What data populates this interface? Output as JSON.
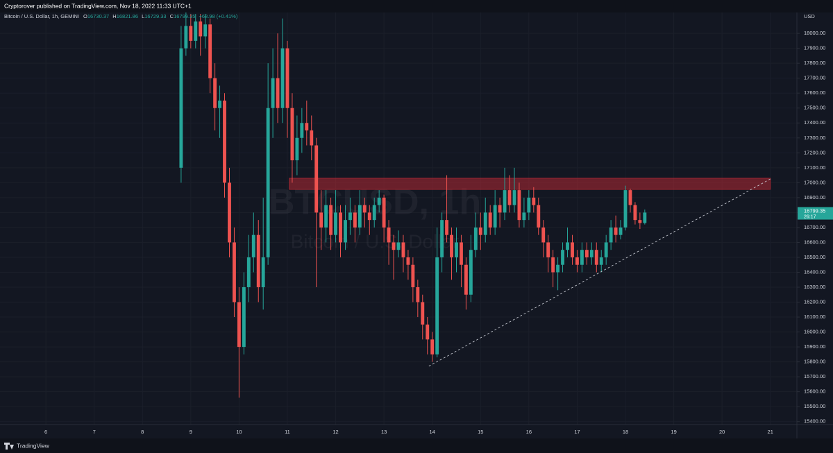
{
  "chart_data": {
    "type": "candlestick",
    "header": "Cryptorover published on TradingView.com, Nov 18, 2022 11:33 UTC+1",
    "symbol": "Bitcoin / U.S. Dollar, 1h, GEMINI",
    "legend": {
      "open_label": "O",
      "open": 16730.37,
      "high_label": "H",
      "high": 16821.86,
      "low_label": "L",
      "low": 16729.33,
      "close_label": "C",
      "close": 16799.35,
      "change": "+68.98 (+0.41%)"
    },
    "watermark": {
      "symbol": "BTCUSD, 1h",
      "name": "Bitcoin / U.S. Dollar"
    },
    "currency": "USD",
    "footer": "TradingView",
    "last_price": 16799.35,
    "countdown": "26:17",
    "up_color": "#26a69a",
    "down_color": "#ef5350",
    "xlim": [
      5.05,
      21.55
    ],
    "xticks": [
      6,
      7,
      8,
      9,
      10,
      11,
      12,
      13,
      14,
      15,
      16,
      17,
      18,
      19,
      20,
      21
    ],
    "ylim": [
      15380,
      18140
    ],
    "yticks": [
      {
        "value": 15400,
        "label": "15400.00"
      },
      {
        "value": 15500,
        "label": "15500.00"
      },
      {
        "value": 15600,
        "label": "15600.00"
      },
      {
        "value": 15700,
        "label": "15700.00"
      },
      {
        "value": 15800,
        "label": "15800.00"
      },
      {
        "value": 15900,
        "label": "15900.00"
      },
      {
        "value": 16000,
        "label": "16000.00"
      },
      {
        "value": 16100,
        "label": "16100.00"
      },
      {
        "value": 16200,
        "label": "16200.00"
      },
      {
        "value": 16300,
        "label": "16300.00"
      },
      {
        "value": 16400,
        "label": "16400.00"
      },
      {
        "value": 16500,
        "label": "16500.00"
      },
      {
        "value": 16600,
        "label": "16600.00"
      },
      {
        "value": 16700,
        "label": "16700.00"
      },
      {
        "value": 16800,
        "label": "16800.00"
      },
      {
        "value": 16900,
        "label": "16900.00"
      },
      {
        "value": 17000,
        "label": "17000.00"
      },
      {
        "value": 17100,
        "label": "17100.00"
      },
      {
        "value": 17200,
        "label": "17200.00"
      },
      {
        "value": 17300,
        "label": "17300.00"
      },
      {
        "value": 17400,
        "label": "17400.00"
      },
      {
        "value": 17500,
        "label": "17500.00"
      },
      {
        "value": 17600,
        "label": "17600.00"
      },
      {
        "value": 17700,
        "label": "17700.00"
      },
      {
        "value": 17800,
        "label": "17800.00"
      },
      {
        "value": 17900,
        "label": "17900.00"
      },
      {
        "value": 18000,
        "label": "18000.00"
      }
    ],
    "grid": true,
    "zone": {
      "x_from": 11.04,
      "x_to": 21,
      "y_from": 16955,
      "y_to": 17030,
      "color": "#b22833"
    },
    "trendline": {
      "x": [
        13.93,
        21
      ],
      "y": [
        15771,
        17025
      ]
    },
    "candles": [
      [
        8.8,
        17100,
        18050,
        17000,
        17900
      ],
      [
        8.9,
        17900,
        18140,
        17850,
        18050
      ],
      [
        9.0,
        18050,
        18130,
        17900,
        17950
      ],
      [
        9.1,
        17950,
        18130,
        17900,
        18080
      ],
      [
        9.2,
        18080,
        18130,
        17850,
        17980
      ],
      [
        9.3,
        17980,
        18130,
        17900,
        18060
      ],
      [
        9.4,
        18060,
        18100,
        17600,
        17700
      ],
      [
        9.5,
        17700,
        17800,
        17350,
        17500
      ],
      [
        9.6,
        17500,
        17650,
        17300,
        17550
      ],
      [
        9.7,
        17550,
        17600,
        16900,
        17000
      ],
      [
        9.8,
        17000,
        17100,
        16500,
        16600
      ],
      [
        9.9,
        16600,
        16700,
        16100,
        16200
      ],
      [
        10.0,
        16200,
        16300,
        15560,
        15900
      ],
      [
        10.1,
        15900,
        16400,
        15850,
        16300
      ],
      [
        10.2,
        16300,
        16650,
        16200,
        16500
      ],
      [
        10.3,
        16500,
        16800,
        16400,
        16650
      ],
      [
        10.4,
        16650,
        16750,
        16200,
        16300
      ],
      [
        10.5,
        16300,
        16900,
        16150,
        16500
      ],
      [
        10.6,
        16500,
        17800,
        16450,
        17500
      ],
      [
        10.7,
        17500,
        17900,
        17300,
        17700
      ],
      [
        10.8,
        17700,
        18000,
        17400,
        17500
      ],
      [
        10.9,
        17500,
        18100,
        17400,
        17900
      ],
      [
        11.0,
        17900,
        17950,
        17300,
        17500
      ],
      [
        11.1,
        17500,
        17600,
        17000,
        17150
      ],
      [
        11.2,
        17150,
        17450,
        17050,
        17300
      ],
      [
        11.3,
        17300,
        17500,
        17200,
        17400
      ],
      [
        11.4,
        17400,
        17550,
        17250,
        17350
      ],
      [
        11.5,
        17350,
        17450,
        17150,
        17250
      ],
      [
        11.6,
        17250,
        17300,
        16300,
        16800
      ],
      [
        11.7,
        16800,
        16950,
        16550,
        16700
      ],
      [
        11.8,
        16700,
        16950,
        16600,
        16850
      ],
      [
        11.9,
        16850,
        16900,
        16550,
        16650
      ],
      [
        12.0,
        16650,
        16950,
        16600,
        16800
      ],
      [
        12.1,
        16800,
        16850,
        16500,
        16600
      ],
      [
        12.2,
        16600,
        16850,
        16550,
        16750
      ],
      [
        12.3,
        16750,
        16900,
        16650,
        16800
      ],
      [
        12.4,
        16800,
        16850,
        16600,
        16700
      ],
      [
        12.5,
        16700,
        16950,
        16650,
        16850
      ],
      [
        12.6,
        16850,
        16900,
        16700,
        16800
      ],
      [
        12.7,
        16800,
        16850,
        16650,
        16750
      ],
      [
        12.8,
        16750,
        16900,
        16700,
        16850
      ],
      [
        12.9,
        16850,
        16950,
        16800,
        16900
      ],
      [
        13.0,
        16900,
        16920,
        16600,
        16700
      ],
      [
        13.1,
        16700,
        16750,
        16450,
        16600
      ],
      [
        13.2,
        16600,
        16650,
        16350,
        16550
      ],
      [
        13.3,
        16550,
        16680,
        16500,
        16600
      ],
      [
        13.4,
        16600,
        16650,
        16400,
        16500
      ],
      [
        13.5,
        16500,
        16550,
        16350,
        16450
      ],
      [
        13.6,
        16450,
        16500,
        16200,
        16300
      ],
      [
        13.7,
        16300,
        16350,
        16100,
        16200
      ],
      [
        13.8,
        16200,
        16250,
        15950,
        16050
      ],
      [
        13.9,
        16050,
        16100,
        15850,
        15950
      ],
      [
        14.0,
        15950,
        16000,
        15800,
        15850
      ],
      [
        14.1,
        15850,
        16700,
        15830,
        16500
      ],
      [
        14.2,
        16500,
        16800,
        16400,
        16750
      ],
      [
        14.3,
        16750,
        17050,
        16600,
        16650
      ],
      [
        14.4,
        16650,
        16700,
        16350,
        16500
      ],
      [
        14.5,
        16500,
        16700,
        16400,
        16600
      ],
      [
        14.6,
        16600,
        16650,
        16300,
        16450
      ],
      [
        14.7,
        16450,
        16500,
        16150,
        16250
      ],
      [
        14.8,
        16250,
        16650,
        16200,
        16550
      ],
      [
        14.9,
        16550,
        16800,
        16500,
        16700
      ],
      [
        15.0,
        16700,
        16800,
        16550,
        16650
      ],
      [
        15.1,
        16650,
        16900,
        16600,
        16800
      ],
      [
        15.2,
        16800,
        16850,
        16650,
        16700
      ],
      [
        15.3,
        16700,
        16950,
        16650,
        16850
      ],
      [
        15.4,
        16850,
        16900,
        16700,
        16800
      ],
      [
        15.5,
        16800,
        17100,
        16750,
        16950
      ],
      [
        15.6,
        16950,
        17050,
        16800,
        16850
      ],
      [
        15.7,
        16850,
        17100,
        16800,
        16950
      ],
      [
        15.8,
        16950,
        17000,
        16700,
        16750
      ],
      [
        15.9,
        16750,
        16900,
        16700,
        16800
      ],
      [
        16.0,
        16800,
        16950,
        16750,
        16900
      ],
      [
        16.1,
        16900,
        16970,
        16800,
        16850
      ],
      [
        16.2,
        16850,
        16900,
        16650,
        16700
      ],
      [
        16.3,
        16700,
        16750,
        16500,
        16600
      ],
      [
        16.4,
        16600,
        16650,
        16400,
        16500
      ],
      [
        16.5,
        16500,
        16550,
        16300,
        16400
      ],
      [
        16.6,
        16400,
        16500,
        16280,
        16450
      ],
      [
        16.7,
        16450,
        16600,
        16400,
        16550
      ],
      [
        16.8,
        16550,
        16700,
        16500,
        16600
      ],
      [
        16.9,
        16600,
        16650,
        16450,
        16500
      ],
      [
        17.0,
        16500,
        16550,
        16400,
        16450
      ],
      [
        17.1,
        16450,
        16600,
        16400,
        16550
      ],
      [
        17.2,
        16550,
        16600,
        16450,
        16500
      ],
      [
        17.3,
        16500,
        16600,
        16450,
        16550
      ],
      [
        17.4,
        16550,
        16600,
        16400,
        16450
      ],
      [
        17.5,
        16450,
        16550,
        16400,
        16500
      ],
      [
        17.6,
        16500,
        16650,
        16450,
        16600
      ],
      [
        17.7,
        16600,
        16750,
        16550,
        16700
      ],
      [
        17.8,
        16700,
        16780,
        16600,
        16650
      ],
      [
        17.9,
        16650,
        16750,
        16620,
        16700
      ],
      [
        18.0,
        16700,
        16980,
        16680,
        16950
      ],
      [
        18.1,
        16950,
        16960,
        16800,
        16850
      ],
      [
        18.2,
        16850,
        16870,
        16720,
        16750
      ],
      [
        18.3,
        16750,
        16800,
        16690,
        16730
      ],
      [
        18.4,
        16730,
        16820,
        16720,
        16800
      ]
    ]
  }
}
